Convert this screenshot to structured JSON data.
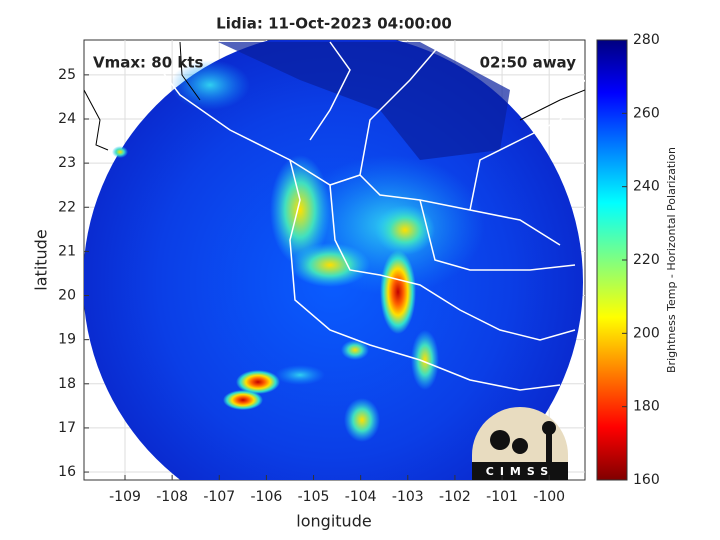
{
  "chart_data": {
    "type": "image",
    "title": "Lidia: 11-Oct-2023 04:00:00",
    "annotations": [
      "Vmax: 80 kts",
      "02:50 away"
    ],
    "xlabel": "longitude",
    "ylabel": "latitude",
    "xlim": [
      -109.87,
      -99.24
    ],
    "ylim": [
      15.82,
      25.79
    ],
    "xticks": [
      -109,
      -108,
      -107,
      -106,
      -105,
      -104,
      -103,
      -102,
      -101,
      -100
    ],
    "yticks": [
      16,
      17,
      18,
      19,
      20,
      21,
      22,
      23,
      24,
      25
    ],
    "grid": true,
    "colorbar": {
      "label": "Brightness Temp - Horizontal Polarization",
      "lim": [
        160,
        280
      ],
      "ticks": [
        160,
        180,
        200,
        220,
        240,
        260,
        280
      ],
      "colormap": "jet"
    },
    "logo_text": "CIMSS"
  }
}
